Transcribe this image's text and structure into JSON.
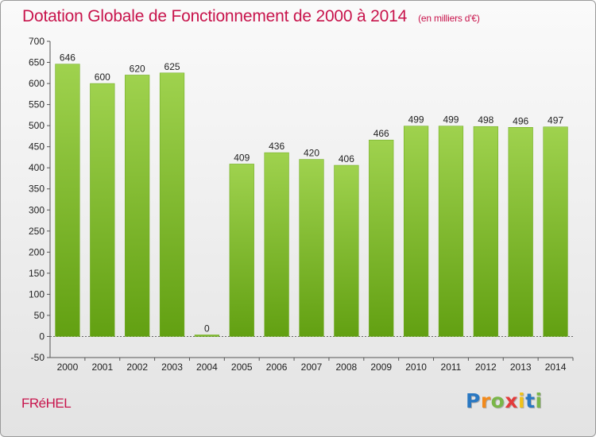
{
  "title": "Dotation Globale de Fonctionnement de 2000 à 2014",
  "subtitle": "(en milliers d'€)",
  "commune": "FRéHEL",
  "logo": {
    "letters": [
      "P",
      "r",
      "o",
      "x",
      "i",
      "t",
      "i"
    ],
    "colors": [
      "#2a78c2",
      "#f28a1c",
      "#7ab648",
      "#e23b3b",
      "#f0c21a",
      "#2a78c2",
      "#7ab648"
    ]
  },
  "chart_data": {
    "type": "bar",
    "categories": [
      "2000",
      "2001",
      "2002",
      "2003",
      "2004",
      "2005",
      "2006",
      "2007",
      "2008",
      "2009",
      "2010",
      "2011",
      "2012",
      "2013",
      "2014"
    ],
    "values": [
      646,
      600,
      620,
      625,
      0,
      409,
      436,
      420,
      406,
      466,
      499,
      499,
      498,
      496,
      497
    ],
    "ylim": [
      -50,
      700
    ],
    "yticks": [
      -50,
      0,
      50,
      100,
      150,
      200,
      250,
      300,
      350,
      400,
      450,
      500,
      550,
      600,
      650,
      700
    ],
    "grid": false,
    "bar_color": "#8cc63f"
  }
}
